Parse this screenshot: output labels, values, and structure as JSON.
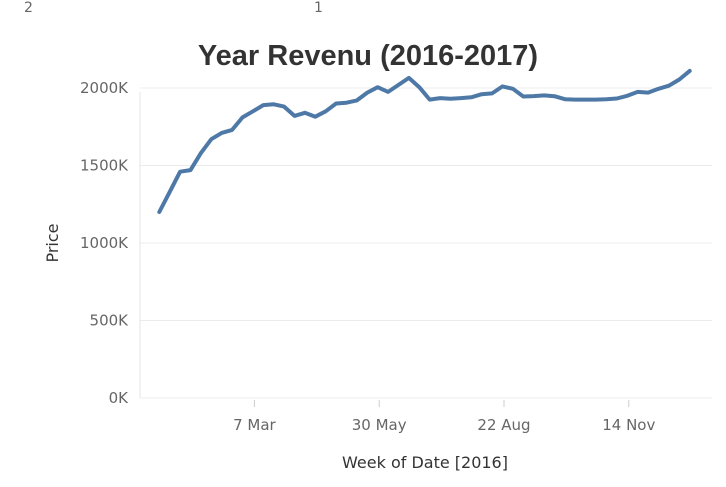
{
  "corner_labels": {
    "left": "2",
    "right": "1"
  },
  "chart_data": {
    "type": "line",
    "title": "Year Revenu (2016-2017)",
    "xlabel": "Week of Date [2016]",
    "ylabel": "Price",
    "x_ticks": [
      {
        "label": "7 Mar",
        "date": "2016-03-07"
      },
      {
        "label": "30 May",
        "date": "2016-05-30"
      },
      {
        "label": "22 Aug",
        "date": "2016-08-22"
      },
      {
        "label": "14 Nov",
        "date": "2016-11-14"
      }
    ],
    "y_ticks": [
      {
        "label": "0K",
        "value": 0
      },
      {
        "label": "500K",
        "value": 500000
      },
      {
        "label": "1000K",
        "value": 1000000
      },
      {
        "label": "1500K",
        "value": 1500000
      },
      {
        "label": "2000K",
        "value": 2000000
      }
    ],
    "ylim": [
      0,
      2200000
    ],
    "xlim": [
      "2015-12-21",
      "2017-01-09"
    ],
    "grid": "horizontal",
    "color": "#4e79a7",
    "series": [
      {
        "x": [
          "2016-01-03",
          "2016-01-10",
          "2016-01-17",
          "2016-01-24",
          "2016-01-31",
          "2016-02-07",
          "2016-02-14",
          "2016-02-21",
          "2016-02-28",
          "2016-03-06",
          "2016-03-13",
          "2016-03-20",
          "2016-03-27",
          "2016-04-03",
          "2016-04-10",
          "2016-04-17",
          "2016-04-24",
          "2016-05-01",
          "2016-05-08",
          "2016-05-15",
          "2016-05-22",
          "2016-05-29",
          "2016-06-05",
          "2016-06-12",
          "2016-06-19",
          "2016-06-26",
          "2016-07-03",
          "2016-07-10",
          "2016-07-17",
          "2016-07-24",
          "2016-07-31",
          "2016-08-07",
          "2016-08-14",
          "2016-08-21",
          "2016-08-28",
          "2016-09-04",
          "2016-09-11",
          "2016-09-18",
          "2016-09-25",
          "2016-10-02",
          "2016-10-09",
          "2016-10-16",
          "2016-10-23",
          "2016-10-30",
          "2016-11-06",
          "2016-11-13",
          "2016-11-20",
          "2016-11-27",
          "2016-12-04",
          "2016-12-11",
          "2016-12-18",
          "2016-12-25"
        ],
        "values": [
          1200000,
          1330000,
          1460000,
          1470000,
          1580000,
          1670000,
          1710000,
          1730000,
          1810000,
          1850000,
          1890000,
          1895000,
          1880000,
          1820000,
          1840000,
          1815000,
          1850000,
          1900000,
          1905000,
          1920000,
          1970000,
          2005000,
          1975000,
          2020000,
          2065000,
          2005000,
          1925000,
          1935000,
          1930000,
          1935000,
          1940000,
          1960000,
          1965000,
          2010000,
          1995000,
          1945000,
          1948000,
          1952000,
          1947000,
          1928000,
          1925000,
          1925000,
          1925000,
          1927000,
          1932000,
          1950000,
          1975000,
          1970000,
          1995000,
          2015000,
          2055000,
          2110000
        ]
      }
    ]
  }
}
